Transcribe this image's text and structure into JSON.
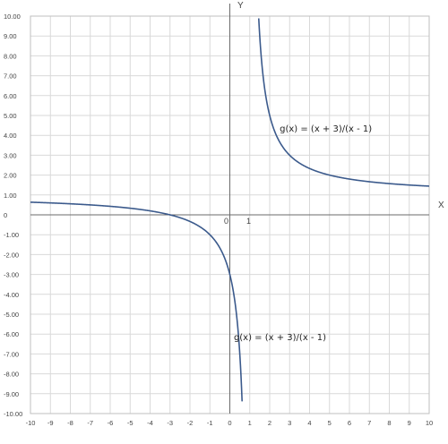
{
  "chart_data": {
    "type": "line",
    "title": "",
    "xlabel": "X",
    "ylabel": "Y",
    "xlim": [
      -10,
      10
    ],
    "ylim": [
      -10,
      10
    ],
    "grid": true,
    "x_tick_labels": [
      "-10",
      "-9",
      "-8",
      "-7",
      "-6",
      "-5",
      "-4",
      "-3",
      "-2",
      "-1",
      "0",
      "1",
      "2",
      "3",
      "4",
      "5",
      "6",
      "7",
      "8",
      "9",
      "10"
    ],
    "y_tick_labels": [
      "10.00",
      "9.00",
      "8.00",
      "7.00",
      "6.00",
      "5.00",
      "4.00",
      "3.00",
      "2.00",
      "1.00",
      "0",
      "-1.00",
      "-2.00",
      "-3.00",
      "-4.00",
      "-5.00",
      "-6.00",
      "-7.00",
      "-8.00",
      "-9.00",
      "-10.00"
    ],
    "y_tick_values": [
      10,
      9,
      8,
      7,
      6,
      5,
      4,
      3,
      2,
      1,
      0,
      -1,
      -2,
      -3,
      -4,
      -5,
      -6,
      -7,
      -8,
      -9,
      -10
    ],
    "origin_labels": {
      "zero": "0",
      "one": "1"
    },
    "series": [
      {
        "color": "#3b5a8c",
        "function": "(x + 3)/(x - 1)",
        "left_branch": {
          "x": [
            -10,
            -9,
            -8,
            -7,
            -6,
            -5,
            -4,
            -3.5,
            -3,
            -2.5,
            -2,
            -1.5,
            -1,
            -0.5,
            0,
            0.1,
            0.2,
            0.3,
            0.35,
            0.4,
            0.45,
            0.5,
            0.52,
            0.55
          ],
          "y": [
            0.64,
            0.6,
            0.56,
            0.5,
            0.43,
            0.33,
            0.2,
            0.11,
            0,
            -0.14,
            -0.33,
            -0.6,
            -1,
            -1.67,
            -3,
            -3.44,
            -4,
            -4.71,
            -5.15,
            -5.67,
            -6.27,
            -7,
            -7.33,
            -7.89
          ]
        },
        "right_branch": {
          "x": [
            1.45,
            1.5,
            1.6,
            1.8,
            2,
            2.5,
            3,
            3.5,
            4,
            5,
            6,
            7,
            8,
            9,
            10
          ],
          "y": [
            9.89,
            9,
            7.67,
            6,
            5,
            3.67,
            3,
            2.6,
            2.33,
            2,
            1.8,
            1.67,
            1.57,
            1.5,
            1.44
          ]
        }
      }
    ],
    "annotations": [
      {
        "text": "g(x) = (x + 3)/(x - 1)",
        "x": 2.5,
        "y": 4.2
      },
      {
        "text": "g(x) = (x + 3)/(x - 1)",
        "x": 0.2,
        "y": -6.3
      }
    ]
  }
}
